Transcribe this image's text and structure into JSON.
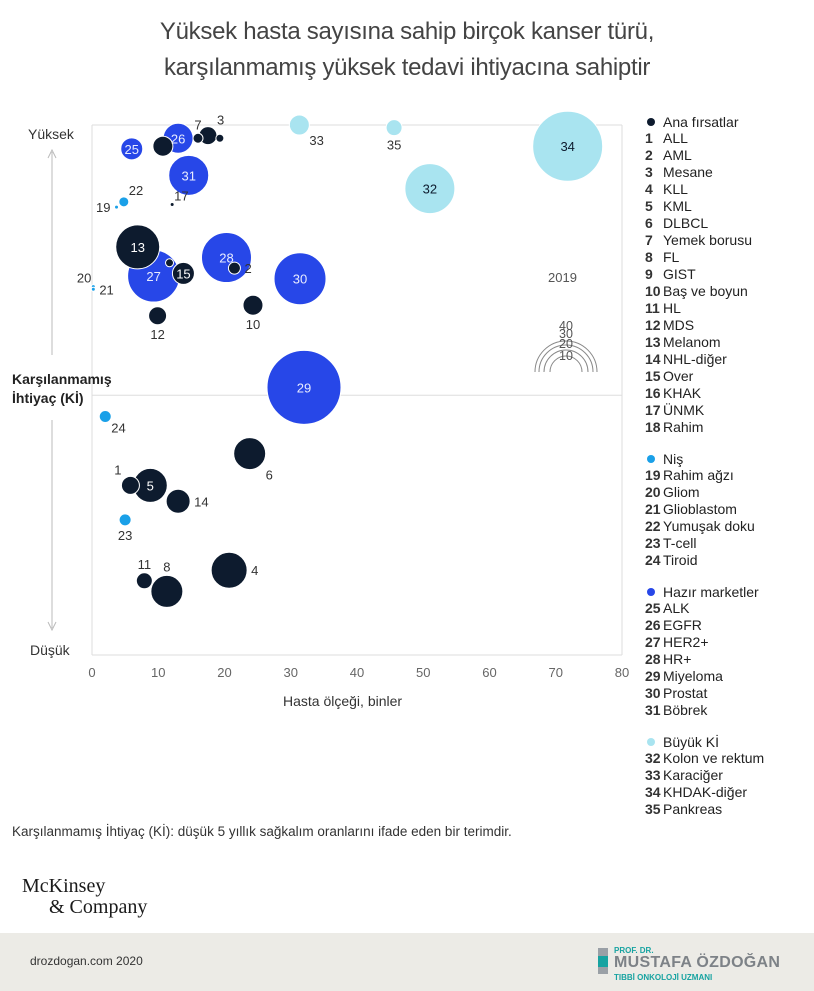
{
  "title": {
    "line1": "Yüksek hasta sayısına sahip birçok kanser türü,",
    "line2": "karşılanmamış yüksek tedavi ihtiyacına sahiptir"
  },
  "colors": {
    "ana": "#0d1b2e",
    "nis": "#1aa0e8",
    "hazir": "#2747e8",
    "buyuk": "#a9e4f0",
    "grid": "#dddddd",
    "axis_text": "#666666"
  },
  "chart_data": {
    "type": "bubble",
    "xlabel": "Hasta ölçeği, binler",
    "ylabel": "Karşılanmamış İhtiyaç (Kİ)",
    "y_top_label": "Yüksek",
    "y_bottom_label": "Düşük",
    "xlim": [
      0,
      80
    ],
    "xticks": [
      0,
      10,
      20,
      30,
      40,
      50,
      60,
      70,
      80
    ],
    "ylim": [
      0,
      100
    ],
    "midline_y": 49,
    "size_legend": {
      "title": "2019",
      "sizes": [
        40,
        30,
        20,
        10
      ]
    },
    "points": [
      {
        "id": "1",
        "x": 5.8,
        "y": 32,
        "r": 9,
        "group": "ana",
        "label": "1",
        "label_pos": "nw"
      },
      {
        "id": "2",
        "x": 21.5,
        "y": 73,
        "r": 6,
        "group": "ana",
        "label": "2",
        "label_pos": "e"
      },
      {
        "id": "3",
        "x": 17.5,
        "y": 98,
        "r": 9,
        "group": "ana",
        "label": "3",
        "label_pos": "ne"
      },
      {
        "id": "4",
        "x": 20.7,
        "y": 16,
        "r": 18,
        "group": "ana",
        "label": "4",
        "label_pos": "e"
      },
      {
        "id": "5",
        "x": 8.8,
        "y": 32,
        "r": 17,
        "group": "ana",
        "label": "5",
        "label_pos": "in"
      },
      {
        "id": "6",
        "x": 23.8,
        "y": 38,
        "r": 16,
        "group": "ana",
        "label": "6",
        "label_pos": "se"
      },
      {
        "id": "7",
        "x": 16.0,
        "y": 97.5,
        "r": 5,
        "group": "ana",
        "label": "7",
        "label_pos": "n"
      },
      {
        "id": "8",
        "x": 11.3,
        "y": 12,
        "r": 16,
        "group": "ana",
        "label": "8",
        "label_pos": "n"
      },
      {
        "id": "9",
        "x": 19.3,
        "y": 97.5,
        "r": 4,
        "group": "ana",
        "label": "",
        "label_pos": ""
      },
      {
        "id": "10",
        "x": 24.3,
        "y": 66,
        "r": 10,
        "group": "ana",
        "label": "10",
        "label_pos": "s"
      },
      {
        "id": "11",
        "x": 7.9,
        "y": 14,
        "r": 8,
        "group": "ana",
        "label": "11",
        "label_pos": "n"
      },
      {
        "id": "12",
        "x": 9.9,
        "y": 64,
        "r": 9,
        "group": "ana",
        "label": "12",
        "label_pos": "s"
      },
      {
        "id": "13",
        "x": 6.9,
        "y": 77,
        "r": 22,
        "group": "ana",
        "label": "13",
        "label_pos": "in"
      },
      {
        "id": "14",
        "x": 13.0,
        "y": 29,
        "r": 12,
        "group": "ana",
        "label": "14",
        "label_pos": "e"
      },
      {
        "id": "15",
        "x": 13.8,
        "y": 72,
        "r": 11,
        "group": "ana",
        "label": "15",
        "label_pos": "in"
      },
      {
        "id": "16",
        "x": 11.7,
        "y": 74,
        "r": 4,
        "group": "ana",
        "label": "",
        "label_pos": ""
      },
      {
        "id": "17",
        "x": 12.1,
        "y": 85,
        "r": 2,
        "group": "ana",
        "label": "17",
        "label_pos": "ne"
      },
      {
        "id": "18",
        "x": 10.7,
        "y": 96,
        "r": 10,
        "group": "ana",
        "label": "",
        "label_pos": ""
      },
      {
        "id": "19",
        "x": 3.7,
        "y": 84.5,
        "r": 2,
        "group": "nis",
        "label": "19",
        "label_pos": "w"
      },
      {
        "id": "20",
        "x": 0.2,
        "y": 69.5,
        "r": 2,
        "group": "nis",
        "label": "20",
        "label_pos": "nw"
      },
      {
        "id": "21",
        "x": 0.2,
        "y": 69,
        "r": 2,
        "group": "nis",
        "label": "21",
        "label_pos": "e"
      },
      {
        "id": "22",
        "x": 4.8,
        "y": 85.5,
        "r": 5,
        "group": "nis",
        "label": "22",
        "label_pos": "ne"
      },
      {
        "id": "23",
        "x": 5.0,
        "y": 25.5,
        "r": 6,
        "group": "nis",
        "label": "23",
        "label_pos": "s"
      },
      {
        "id": "24",
        "x": 2.0,
        "y": 45,
        "r": 6,
        "group": "nis",
        "label": "24",
        "label_pos": "se"
      },
      {
        "id": "25",
        "x": 6.0,
        "y": 95.5,
        "r": 11,
        "group": "hazir",
        "label": "25",
        "label_pos": "in"
      },
      {
        "id": "26",
        "x": 13.0,
        "y": 97.5,
        "r": 15,
        "group": "hazir",
        "label": "26",
        "label_pos": "in"
      },
      {
        "id": "27",
        "x": 9.3,
        "y": 71.5,
        "r": 26,
        "group": "hazir",
        "label": "27",
        "label_pos": "in"
      },
      {
        "id": "28",
        "x": 20.3,
        "y": 75,
        "r": 25,
        "group": "hazir",
        "label": "28",
        "label_pos": "in"
      },
      {
        "id": "29",
        "x": 32.0,
        "y": 50.5,
        "r": 37,
        "group": "hazir",
        "label": "29",
        "label_pos": "in"
      },
      {
        "id": "30",
        "x": 31.4,
        "y": 71,
        "r": 26,
        "group": "hazir",
        "label": "30",
        "label_pos": "in"
      },
      {
        "id": "31",
        "x": 14.6,
        "y": 90.5,
        "r": 20,
        "group": "hazir",
        "label": "31",
        "label_pos": "in"
      },
      {
        "id": "32",
        "x": 51.0,
        "y": 88,
        "r": 25,
        "group": "buyuk",
        "label": "32",
        "label_pos": "in"
      },
      {
        "id": "33",
        "x": 31.3,
        "y": 100,
        "r": 10,
        "group": "buyuk",
        "label": "33",
        "label_pos": "se"
      },
      {
        "id": "34",
        "x": 71.8,
        "y": 96,
        "r": 35,
        "group": "buyuk",
        "label": "34",
        "label_pos": "in"
      },
      {
        "id": "35",
        "x": 45.6,
        "y": 99.5,
        "r": 8,
        "group": "buyuk",
        "label": "35",
        "label_pos": "s"
      }
    ]
  },
  "legend": {
    "groups": [
      {
        "key": "ana",
        "title": "Ana fırsatlar",
        "items": [
          {
            "n": "1",
            "label": "ALL"
          },
          {
            "n": "2",
            "label": "AML"
          },
          {
            "n": "3",
            "label": "Mesane"
          },
          {
            "n": "4",
            "label": "KLL"
          },
          {
            "n": "5",
            "label": "KML"
          },
          {
            "n": "6",
            "label": "DLBCL"
          },
          {
            "n": "7",
            "label": "Yemek borusu"
          },
          {
            "n": "8",
            "label": "FL"
          },
          {
            "n": "9",
            "label": "GIST"
          },
          {
            "n": "10",
            "label": "Baş ve boyun"
          },
          {
            "n": "11",
            "label": "HL"
          },
          {
            "n": "12",
            "label": "MDS"
          },
          {
            "n": "13",
            "label": "Melanom"
          },
          {
            "n": "14",
            "label": "NHL-diğer"
          },
          {
            "n": "15",
            "label": "Over"
          },
          {
            "n": "16",
            "label": "KHAK"
          },
          {
            "n": "17",
            "label": "ÜNMK"
          },
          {
            "n": "18",
            "label": "Rahim"
          }
        ]
      },
      {
        "key": "nis",
        "title": "Niş",
        "items": [
          {
            "n": "19",
            "label": "Rahim ağzı"
          },
          {
            "n": "20",
            "label": "Gliom"
          },
          {
            "n": "21",
            "label": "Glioblastom"
          },
          {
            "n": "22",
            "label": "Yumuşak doku"
          },
          {
            "n": "23",
            "label": "T-cell"
          },
          {
            "n": "24",
            "label": "Tiroid"
          }
        ]
      },
      {
        "key": "hazir",
        "title": "Hazır marketler",
        "items": [
          {
            "n": "25",
            "label": "ALK"
          },
          {
            "n": "26",
            "label": "EGFR"
          },
          {
            "n": "27",
            "label": "HER2+"
          },
          {
            "n": "28",
            "label": "HR+"
          },
          {
            "n": "29",
            "label": "Miyeloma"
          },
          {
            "n": "30",
            "label": "Prostat"
          },
          {
            "n": "31",
            "label": "Böbrek"
          }
        ]
      },
      {
        "key": "buyuk",
        "title": "Büyük Kİ",
        "items": [
          {
            "n": "32",
            "label": "Kolon ve rektum"
          },
          {
            "n": "33",
            "label": "Karaciğer"
          },
          {
            "n": "34",
            "label": "KHDAK-diğer"
          },
          {
            "n": "35",
            "label": "Pankreas"
          }
        ]
      }
    ]
  },
  "footnote": "Karşılanmamış İhtiyaç (Kİ): düşük 5 yıllık sağkalım oranlarını ifade eden bir terimdir.",
  "logo": {
    "line1": "McKinsey",
    "line2": "& Company"
  },
  "footer": {
    "site": "drozdogan.com 2020",
    "brand_pre": "PROF. DR.",
    "brand_name": "MUSTAFA ÖZDOĞAN",
    "brand_sub": "TIBBİ ONKOLOJİ UZMANI"
  }
}
